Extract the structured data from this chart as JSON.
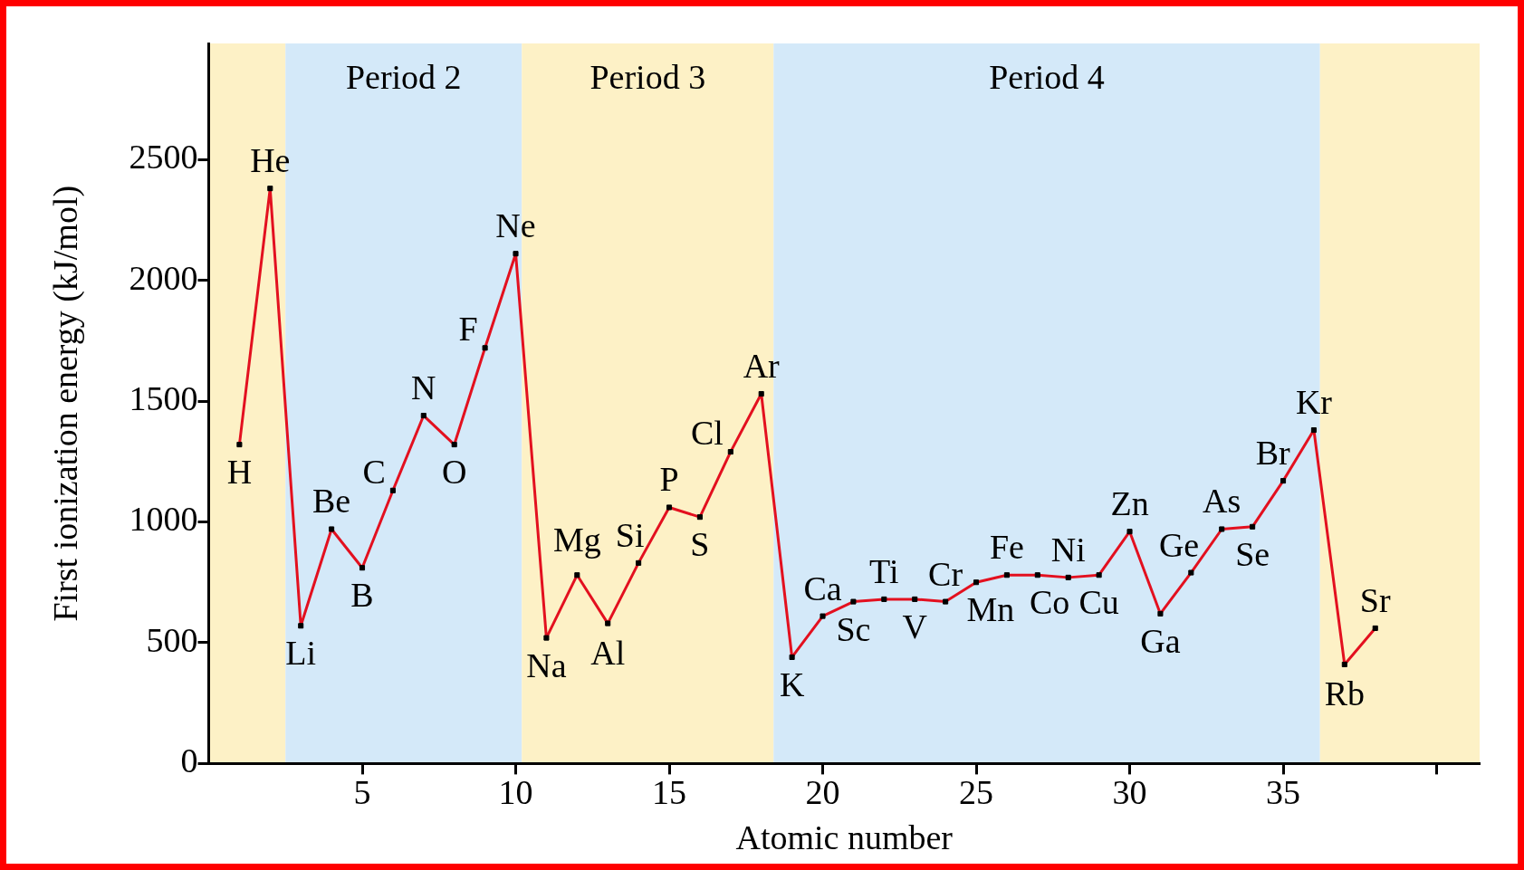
{
  "chart_data": {
    "type": "line",
    "xlabel": "Atomic number",
    "ylabel": "First ionization energy (kJ/mol)",
    "x": [
      1,
      2,
      3,
      4,
      5,
      6,
      7,
      8,
      9,
      10,
      11,
      12,
      13,
      14,
      15,
      16,
      17,
      18,
      19,
      20,
      21,
      22,
      23,
      24,
      25,
      26,
      27,
      28,
      29,
      30,
      31,
      32,
      33,
      34,
      35,
      36,
      37,
      38
    ],
    "values": [
      1320,
      2380,
      570,
      970,
      810,
      1130,
      1440,
      1320,
      1720,
      2110,
      520,
      780,
      580,
      830,
      1060,
      1020,
      1290,
      1530,
      440,
      610,
      670,
      680,
      680,
      670,
      750,
      780,
      780,
      770,
      780,
      960,
      620,
      790,
      970,
      980,
      1170,
      1380,
      410,
      560
    ],
    "color": "#e3101f",
    "marker": "square",
    "line_style": "solid",
    "xlim": [
      0,
      41.4
    ],
    "xticks": [
      5,
      10,
      15,
      20,
      25,
      30,
      35,
      {
        "value": 40,
        "label": null
      }
    ],
    "ylim": [
      0,
      2980
    ],
    "yticks": [
      0,
      500,
      1000,
      1500,
      2000,
      2500
    ],
    "bands": [
      {
        "axis": "x",
        "from": 0,
        "to": 2.5,
        "color": "#fdf1c6"
      },
      {
        "axis": "x",
        "from": 2.5,
        "to": 10.2,
        "label": "Period 2",
        "color": "#d4e9f9"
      },
      {
        "axis": "x",
        "from": 10.2,
        "to": 18.4,
        "label": "Period 3",
        "color": "#fdf1c6"
      },
      {
        "axis": "x",
        "from": 18.4,
        "to": 36.2,
        "label": "Period 4",
        "color": "#d4e9f9"
      },
      {
        "axis": "x",
        "from": 36.2,
        "to": 41.4,
        "color": "#fdf1c6"
      }
    ],
    "annotations": [
      {
        "text": "H",
        "x": 1,
        "y": 1320
      },
      {
        "text": "He",
        "x": 2,
        "y": 2380
      },
      {
        "text": "Li",
        "x": 3,
        "y": 570
      },
      {
        "text": "Be",
        "x": 4,
        "y": 970
      },
      {
        "text": "B",
        "x": 5,
        "y": 810
      },
      {
        "text": "C",
        "x": 6,
        "y": 1130
      },
      {
        "text": "N",
        "x": 7,
        "y": 1440
      },
      {
        "text": "O",
        "x": 8,
        "y": 1320
      },
      {
        "text": "F",
        "x": 9,
        "y": 1720
      },
      {
        "text": "Ne",
        "x": 10,
        "y": 2110
      },
      {
        "text": "Na",
        "x": 11,
        "y": 520
      },
      {
        "text": "Mg",
        "x": 12,
        "y": 780
      },
      {
        "text": "Al",
        "x": 13,
        "y": 580
      },
      {
        "text": "Si",
        "x": 14,
        "y": 830
      },
      {
        "text": "P",
        "x": 15,
        "y": 1060
      },
      {
        "text": "S",
        "x": 16,
        "y": 1020
      },
      {
        "text": "Cl",
        "x": 17,
        "y": 1290
      },
      {
        "text": "Ar",
        "x": 18,
        "y": 1530
      },
      {
        "text": "K",
        "x": 19,
        "y": 440
      },
      {
        "text": "Ca",
        "x": 20,
        "y": 610
      },
      {
        "text": "Sc",
        "x": 21,
        "y": 670
      },
      {
        "text": "Ti",
        "x": 22,
        "y": 680
      },
      {
        "text": "V",
        "x": 23,
        "y": 680
      },
      {
        "text": "Cr",
        "x": 24,
        "y": 670
      },
      {
        "text": "Mn",
        "x": 25,
        "y": 750
      },
      {
        "text": "Fe",
        "x": 26,
        "y": 780
      },
      {
        "text": "Co",
        "x": 27,
        "y": 780
      },
      {
        "text": "Ni",
        "x": 28,
        "y": 770
      },
      {
        "text": "Cu",
        "x": 29,
        "y": 780
      },
      {
        "text": "Zn",
        "x": 30,
        "y": 960
      },
      {
        "text": "Ga",
        "x": 31,
        "y": 620
      },
      {
        "text": "Ge",
        "x": 32,
        "y": 790
      },
      {
        "text": "As",
        "x": 33,
        "y": 970
      },
      {
        "text": "Se",
        "x": 34,
        "y": 980
      },
      {
        "text": "Br",
        "x": 35,
        "y": 1170
      },
      {
        "text": "Kr",
        "x": 36,
        "y": 1380
      },
      {
        "text": "Rb",
        "x": 37,
        "y": 410
      },
      {
        "text": "Sr",
        "x": 38,
        "y": 560
      }
    ]
  }
}
